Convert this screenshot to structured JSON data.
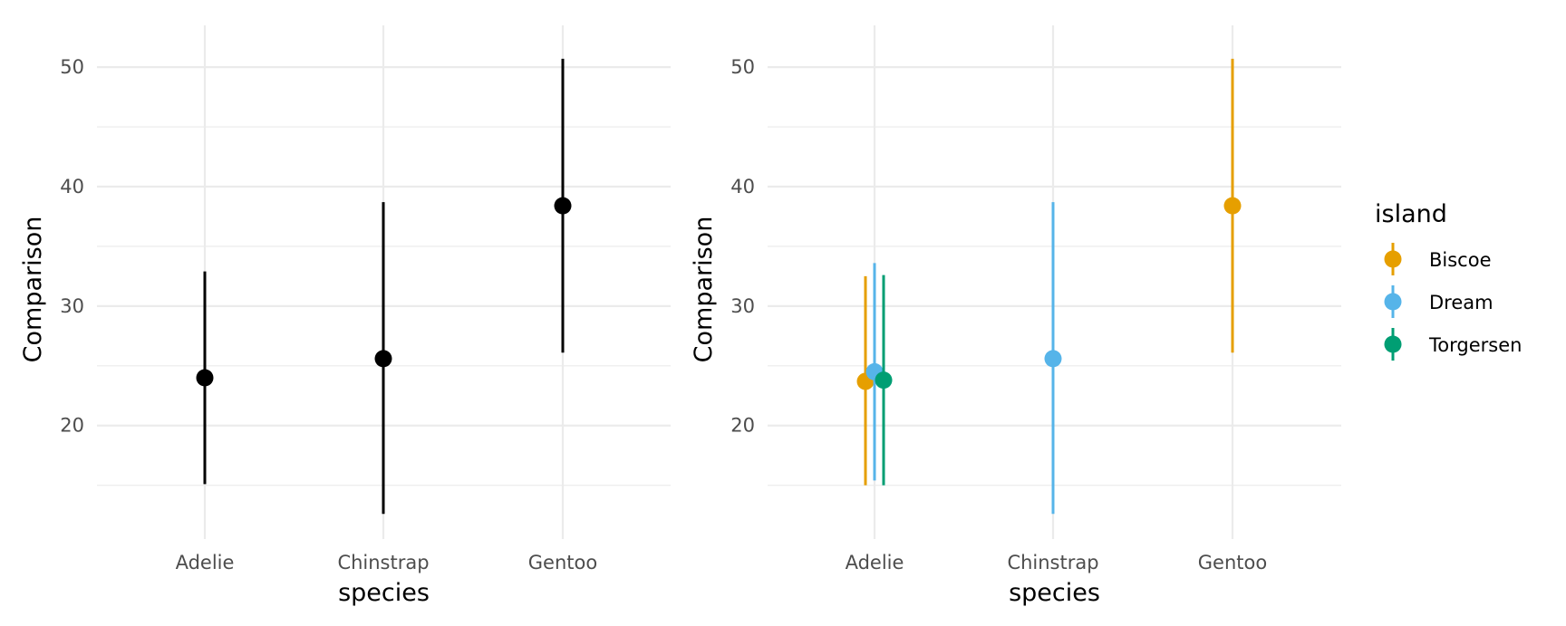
{
  "chart_data": [
    {
      "type": "pointrange",
      "xlabel": "species",
      "ylabel": "Comparison",
      "categories": [
        "Adelie",
        "Chinstrap",
        "Gentoo"
      ],
      "ylim": [
        10.5,
        53.5
      ],
      "yticks": [
        20,
        30,
        40,
        50
      ],
      "grid": true,
      "series": [
        {
          "color": "#000000",
          "points": [
            {
              "x": "Adelie",
              "y": 24.0,
              "low": 15.1,
              "high": 32.9
            },
            {
              "x": "Chinstrap",
              "y": 25.6,
              "low": 12.6,
              "high": 38.7
            },
            {
              "x": "Gentoo",
              "y": 38.4,
              "low": 26.1,
              "high": 50.7
            }
          ]
        }
      ]
    },
    {
      "type": "pointrange",
      "xlabel": "species",
      "ylabel": "Comparison",
      "categories": [
        "Adelie",
        "Chinstrap",
        "Gentoo"
      ],
      "ylim": [
        10.5,
        53.5
      ],
      "yticks": [
        20,
        30,
        40,
        50
      ],
      "grid": true,
      "legend": {
        "title": "island",
        "position": "right"
      },
      "series": [
        {
          "name": "Biscoe",
          "color": "#E69F00",
          "points": [
            {
              "x": "Adelie",
              "y": 23.7,
              "low": 15.0,
              "high": 32.5
            },
            {
              "x": "Gentoo",
              "y": 38.4,
              "low": 26.1,
              "high": 50.7
            }
          ]
        },
        {
          "name": "Dream",
          "color": "#56B4E9",
          "points": [
            {
              "x": "Adelie",
              "y": 24.5,
              "low": 15.4,
              "high": 33.6
            },
            {
              "x": "Chinstrap",
              "y": 25.6,
              "low": 12.6,
              "high": 38.7
            }
          ]
        },
        {
          "name": "Torgersen",
          "color": "#009E73",
          "points": [
            {
              "x": "Adelie",
              "y": 23.8,
              "low": 15.0,
              "high": 32.6
            }
          ]
        }
      ]
    }
  ]
}
